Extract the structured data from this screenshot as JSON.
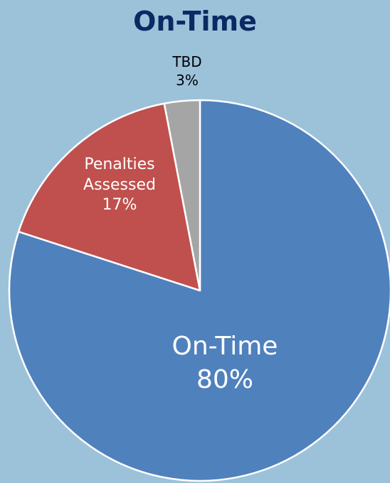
{
  "chart_data": {
    "type": "pie",
    "title": "On-Time",
    "categories": [
      "On-Time",
      "Penalties Assessed",
      "TBD"
    ],
    "values": [
      80,
      17,
      3
    ],
    "value_labels": [
      "80%",
      "17%",
      "3%"
    ],
    "colors": [
      "#4f81bd",
      "#c0504d",
      "#a5a5a5"
    ]
  }
}
